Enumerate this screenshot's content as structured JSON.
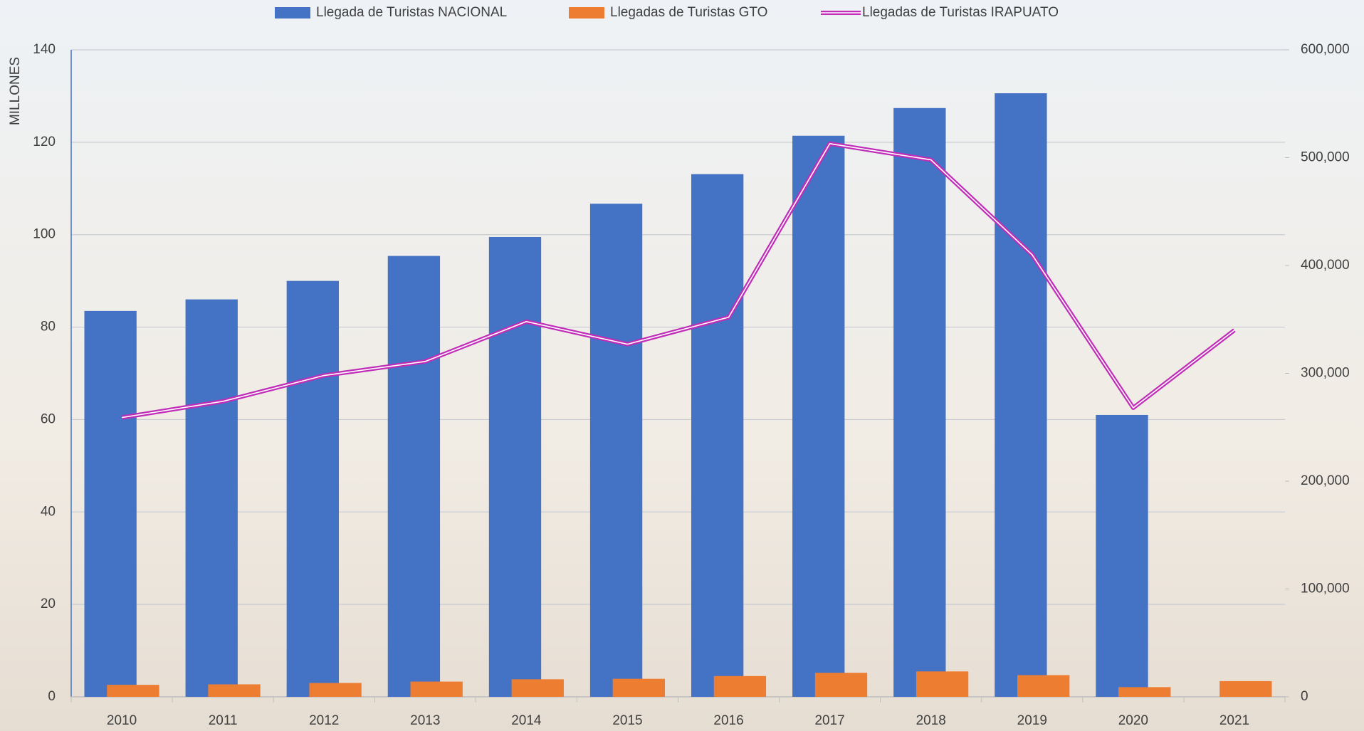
{
  "chart_data": {
    "type": "bar",
    "y_label": "MILLONES",
    "categories": [
      "2010",
      "2011",
      "2012",
      "2013",
      "2014",
      "2015",
      "2016",
      "2017",
      "2018",
      "2019",
      "2020",
      "2021"
    ],
    "series": [
      {
        "name": "Llegada de Turistas NACIONAL",
        "color": "#4472c4",
        "type": "bar",
        "axis": "y",
        "values": [
          83.5,
          86.0,
          90.0,
          95.4,
          99.5,
          106.7,
          113.1,
          121.4,
          127.4,
          130.6,
          61.0,
          null
        ]
      },
      {
        "name": "Llegadas de Turistas GTO",
        "color": "#ed7d31",
        "type": "bar",
        "axis": "y",
        "values": [
          2.6,
          2.7,
          3.0,
          3.3,
          3.8,
          3.9,
          4.5,
          5.2,
          5.5,
          4.7,
          2.1,
          3.4
        ]
      },
      {
        "name": "Llegadas de Turistas IRAPUATO",
        "color": "#c02cb8",
        "type": "line",
        "axis": "y2",
        "values": [
          259000,
          274000,
          298000,
          311000,
          348000,
          327000,
          352000,
          513000,
          498000,
          410000,
          268000,
          340000
        ]
      }
    ],
    "ylim": [
      0,
      140
    ],
    "yticks": [
      0,
      20,
      40,
      60,
      80,
      100,
      120,
      140
    ],
    "y2lim": [
      0,
      600000
    ],
    "y2ticks": [
      0,
      {
        "value": 100000,
        "label": "100,000"
      },
      {
        "value": 200000,
        "label": "200,000"
      },
      {
        "value": 300000,
        "label": "300,000"
      },
      {
        "value": 400000,
        "label": "400,000"
      },
      {
        "value": 500000,
        "label": "500,000"
      },
      {
        "value": 600000,
        "label": "600,000"
      }
    ],
    "grid": true,
    "legend": "top"
  }
}
